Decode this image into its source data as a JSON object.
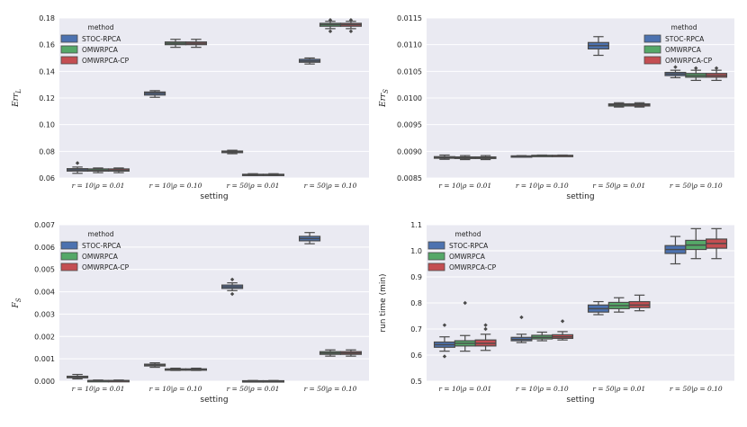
{
  "chart_data": [
    {
      "type": "box",
      "xlabel": "setting",
      "ylabel": "Err_L",
      "ylabel_display": "Err",
      "ylabel_sub": "L",
      "ylim": [
        0.06,
        0.18
      ],
      "yticks": [
        "0.06",
        "0.08",
        "0.10",
        "0.12",
        "0.14",
        "0.16",
        "0.18"
      ],
      "ytick_values": [
        0.06,
        0.08,
        0.1,
        0.12,
        0.14,
        0.16,
        0.18
      ],
      "categories": [
        "r = 10|ρ = 0.01",
        "r = 10|ρ = 0.10",
        "r = 50|ρ = 0.01",
        "r = 50|ρ = 0.10"
      ],
      "legend": {
        "title": "method",
        "placement": "upper-left"
      },
      "series": [
        {
          "name": "STOC-RPCA",
          "color": "#4c72b0",
          "boxes": [
            {
              "whislo": 0.0635,
              "q1": 0.0652,
              "med": 0.066,
              "q3": 0.067,
              "whishi": 0.0682,
              "fliers": [
                0.0712
              ]
            },
            {
              "whislo": 0.1205,
              "q1": 0.1222,
              "med": 0.1235,
              "q3": 0.1245,
              "whishi": 0.1255,
              "fliers": []
            },
            {
              "whislo": 0.0782,
              "q1": 0.079,
              "med": 0.0795,
              "q3": 0.0802,
              "whishi": 0.0808,
              "fliers": []
            },
            {
              "whislo": 0.1455,
              "q1": 0.1468,
              "med": 0.1478,
              "q3": 0.149,
              "whishi": 0.15,
              "fliers": []
            }
          ]
        },
        {
          "name": "OMWRPCA",
          "color": "#55a868",
          "boxes": [
            {
              "whislo": 0.064,
              "q1": 0.0652,
              "med": 0.0658,
              "q3": 0.0668,
              "whishi": 0.0675,
              "fliers": []
            },
            {
              "whislo": 0.158,
              "q1": 0.16,
              "med": 0.161,
              "q3": 0.162,
              "whishi": 0.164,
              "fliers": []
            },
            {
              "whislo": 0.0618,
              "q1": 0.0622,
              "med": 0.0625,
              "q3": 0.0628,
              "whishi": 0.0632,
              "fliers": []
            },
            {
              "whislo": 0.172,
              "q1": 0.1738,
              "med": 0.175,
              "q3": 0.176,
              "whishi": 0.1775,
              "fliers": [
                0.17,
                0.1785
              ]
            }
          ]
        },
        {
          "name": "OMWRPCA-CP",
          "color": "#c44e52",
          "boxes": [
            {
              "whislo": 0.064,
              "q1": 0.0652,
              "med": 0.0658,
              "q3": 0.0668,
              "whishi": 0.0675,
              "fliers": []
            },
            {
              "whislo": 0.158,
              "q1": 0.16,
              "med": 0.161,
              "q3": 0.162,
              "whishi": 0.164,
              "fliers": []
            },
            {
              "whislo": 0.0618,
              "q1": 0.0622,
              "med": 0.0625,
              "q3": 0.0628,
              "whishi": 0.0632,
              "fliers": []
            },
            {
              "whislo": 0.172,
              "q1": 0.1738,
              "med": 0.175,
              "q3": 0.176,
              "whishi": 0.1775,
              "fliers": [
                0.17,
                0.1785
              ]
            }
          ]
        }
      ]
    },
    {
      "type": "box",
      "xlabel": "setting",
      "ylabel": "Err_S",
      "ylabel_display": "Err",
      "ylabel_sub": "S",
      "ylim": [
        0.0085,
        0.0115
      ],
      "yticks": [
        "0.0085",
        "0.0090",
        "0.0095",
        "0.0100",
        "0.0105",
        "0.0110",
        "0.0115"
      ],
      "ytick_values": [
        0.0085,
        0.009,
        0.0095,
        0.01,
        0.0105,
        0.011,
        0.0115
      ],
      "categories": [
        "r = 10|ρ = 0.01",
        "r = 10|ρ = 0.10",
        "r = 50|ρ = 0.01",
        "r = 50|ρ = 0.10"
      ],
      "legend": {
        "title": "method",
        "placement": "upper-right"
      },
      "series": [
        {
          "name": "STOC-RPCA",
          "color": "#4c72b0",
          "boxes": [
            {
              "whislo": 0.00885,
              "q1": 0.00887,
              "med": 0.008885,
              "q3": 0.0089,
              "whishi": 0.00893,
              "fliers": []
            },
            {
              "whislo": 0.0089,
              "q1": 0.008905,
              "med": 0.00891,
              "q3": 0.008915,
              "whishi": 0.00892,
              "fliers": []
            },
            {
              "whislo": 0.0108,
              "q1": 0.01092,
              "med": 0.01098,
              "q3": 0.01104,
              "whishi": 0.01115,
              "fliers": []
            },
            {
              "whislo": 0.01038,
              "q1": 0.01042,
              "med": 0.01045,
              "q3": 0.01048,
              "whishi": 0.01052,
              "fliers": [
                0.01058
              ]
            }
          ]
        },
        {
          "name": "OMWRPCA",
          "color": "#55a868",
          "boxes": [
            {
              "whislo": 0.008845,
              "q1": 0.008865,
              "med": 0.00888,
              "q3": 0.008895,
              "whishi": 0.00892,
              "fliers": []
            },
            {
              "whislo": 0.00891,
              "q1": 0.008915,
              "med": 0.00892,
              "q3": 0.008925,
              "whishi": 0.00893,
              "fliers": []
            },
            {
              "whislo": 0.00983,
              "q1": 0.00985,
              "med": 0.00987,
              "q3": 0.00989,
              "whishi": 0.00991,
              "fliers": []
            },
            {
              "whislo": 0.01033,
              "q1": 0.01039,
              "med": 0.01042,
              "q3": 0.01046,
              "whishi": 0.01052,
              "fliers": [
                0.01056
              ]
            }
          ]
        },
        {
          "name": "OMWRPCA-CP",
          "color": "#c44e52",
          "boxes": [
            {
              "whislo": 0.008845,
              "q1": 0.008865,
              "med": 0.00888,
              "q3": 0.008895,
              "whishi": 0.00892,
              "fliers": []
            },
            {
              "whislo": 0.00891,
              "q1": 0.008915,
              "med": 0.00892,
              "q3": 0.008925,
              "whishi": 0.00893,
              "fliers": []
            },
            {
              "whislo": 0.00983,
              "q1": 0.00985,
              "med": 0.00987,
              "q3": 0.00989,
              "whishi": 0.00991,
              "fliers": []
            },
            {
              "whislo": 0.01033,
              "q1": 0.01039,
              "med": 0.01042,
              "q3": 0.01046,
              "whishi": 0.01052,
              "fliers": [
                0.01056
              ]
            }
          ]
        }
      ]
    },
    {
      "type": "box",
      "xlabel": "setting",
      "ylabel": "F_S",
      "ylabel_display": "F",
      "ylabel_sub": "S",
      "ylim": [
        0.0,
        0.007
      ],
      "yticks": [
        "0.000",
        "0.001",
        "0.002",
        "0.003",
        "0.004",
        "0.005",
        "0.006",
        "0.007"
      ],
      "ytick_values": [
        0.0,
        0.001,
        0.002,
        0.003,
        0.004,
        0.005,
        0.006,
        0.007
      ],
      "categories": [
        "r = 10|ρ = 0.01",
        "r = 10|ρ = 0.10",
        "r = 50|ρ = 0.01",
        "r = 50|ρ = 0.10"
      ],
      "legend": {
        "title": "method",
        "placement": "upper-left"
      },
      "series": [
        {
          "name": "STOC-RPCA",
          "color": "#4c72b0",
          "boxes": [
            {
              "whislo": 0.0001,
              "q1": 0.00015,
              "med": 0.00018,
              "q3": 0.00022,
              "whishi": 0.0003,
              "fliers": []
            },
            {
              "whislo": 0.00062,
              "q1": 0.00068,
              "med": 0.00072,
              "q3": 0.00076,
              "whishi": 0.00082,
              "fliers": []
            },
            {
              "whislo": 0.00405,
              "q1": 0.00415,
              "med": 0.00422,
              "q3": 0.0043,
              "whishi": 0.0044,
              "fliers": [
                0.0039,
                0.00455
              ]
            },
            {
              "whislo": 0.00615,
              "q1": 0.00628,
              "med": 0.00638,
              "q3": 0.00648,
              "whishi": 0.00665,
              "fliers": []
            }
          ]
        },
        {
          "name": "OMWRPCA",
          "color": "#55a868",
          "boxes": [
            {
              "whislo": 0.0,
              "q1": 1e-05,
              "med": 2e-05,
              "q3": 3e-05,
              "whishi": 5e-05,
              "fliers": []
            },
            {
              "whislo": 0.00048,
              "q1": 0.00051,
              "med": 0.00053,
              "q3": 0.00055,
              "whishi": 0.00058,
              "fliers": []
            },
            {
              "whislo": 0.0,
              "q1": 0.0,
              "med": 1e-05,
              "q3": 2e-05,
              "whishi": 3e-05,
              "fliers": []
            },
            {
              "whislo": 0.00112,
              "q1": 0.0012,
              "med": 0.00126,
              "q3": 0.00132,
              "whishi": 0.0014,
              "fliers": []
            }
          ]
        },
        {
          "name": "OMWRPCA-CP",
          "color": "#c44e52",
          "boxes": [
            {
              "whislo": 0.0,
              "q1": 1e-05,
              "med": 2e-05,
              "q3": 3e-05,
              "whishi": 5e-05,
              "fliers": []
            },
            {
              "whislo": 0.00048,
              "q1": 0.00051,
              "med": 0.00053,
              "q3": 0.00055,
              "whishi": 0.00058,
              "fliers": []
            },
            {
              "whislo": 0.0,
              "q1": 0.0,
              "med": 1e-05,
              "q3": 2e-05,
              "whishi": 3e-05,
              "fliers": []
            },
            {
              "whislo": 0.00112,
              "q1": 0.0012,
              "med": 0.00126,
              "q3": 0.00132,
              "whishi": 0.0014,
              "fliers": []
            }
          ]
        }
      ]
    },
    {
      "type": "box",
      "xlabel": "setting",
      "ylabel": "run time (min)",
      "ylabel_display": "run time (min)",
      "ylabel_sub": "",
      "ylim": [
        0.5,
        1.1
      ],
      "yticks": [
        "0.5",
        "0.6",
        "0.7",
        "0.8",
        "0.9",
        "1.0",
        "1.1"
      ],
      "ytick_values": [
        0.5,
        0.6,
        0.7,
        0.8,
        0.9,
        1.0,
        1.1
      ],
      "categories": [
        "r = 10|ρ = 0.01",
        "r = 10|ρ = 0.10",
        "r = 50|ρ = 0.01",
        "r = 50|ρ = 0.10"
      ],
      "legend": {
        "title": "method",
        "placement": "upper-left"
      },
      "series": [
        {
          "name": "STOC-RPCA",
          "color": "#4c72b0",
          "boxes": [
            {
              "whislo": 0.615,
              "q1": 0.63,
              "med": 0.64,
              "q3": 0.65,
              "whishi": 0.67,
              "fliers": [
                0.595,
                0.715
              ]
            },
            {
              "whislo": 0.648,
              "q1": 0.655,
              "med": 0.66,
              "q3": 0.668,
              "whishi": 0.68,
              "fliers": [
                0.745
              ]
            },
            {
              "whislo": 0.755,
              "q1": 0.765,
              "med": 0.778,
              "q3": 0.792,
              "whishi": 0.805,
              "fliers": []
            },
            {
              "whislo": 0.95,
              "q1": 0.99,
              "med": 1.005,
              "q3": 1.02,
              "whishi": 1.055,
              "fliers": []
            }
          ]
        },
        {
          "name": "OMWRPCA",
          "color": "#55a868",
          "boxes": [
            {
              "whislo": 0.615,
              "q1": 0.635,
              "med": 0.645,
              "q3": 0.655,
              "whishi": 0.675,
              "fliers": [
                0.8
              ]
            },
            {
              "whislo": 0.655,
              "q1": 0.662,
              "med": 0.668,
              "q3": 0.676,
              "whishi": 0.688,
              "fliers": []
            },
            {
              "whislo": 0.765,
              "q1": 0.778,
              "med": 0.79,
              "q3": 0.802,
              "whishi": 0.82,
              "fliers": []
            },
            {
              "whislo": 0.97,
              "q1": 1.005,
              "med": 1.022,
              "q3": 1.04,
              "whishi": 1.085,
              "fliers": []
            }
          ]
        },
        {
          "name": "OMWRPCA-CP",
          "color": "#c44e52",
          "boxes": [
            {
              "whislo": 0.618,
              "q1": 0.635,
              "med": 0.645,
              "q3": 0.658,
              "whishi": 0.68,
              "fliers": [
                0.7,
                0.715
              ]
            },
            {
              "whislo": 0.658,
              "q1": 0.664,
              "med": 0.67,
              "q3": 0.678,
              "whishi": 0.69,
              "fliers": [
                0.73
              ]
            },
            {
              "whislo": 0.77,
              "q1": 0.782,
              "med": 0.792,
              "q3": 0.805,
              "whishi": 0.83,
              "fliers": []
            },
            {
              "whislo": 0.97,
              "q1": 1.01,
              "med": 1.028,
              "q3": 1.045,
              "whishi": 1.085,
              "fliers": []
            }
          ]
        }
      ]
    }
  ],
  "style": {
    "axes_facecolor": "#eaeaf2",
    "grid_color": "#ffffff",
    "median_color": "#4a4a4a",
    "whisker_color": "#4a4a4a"
  }
}
